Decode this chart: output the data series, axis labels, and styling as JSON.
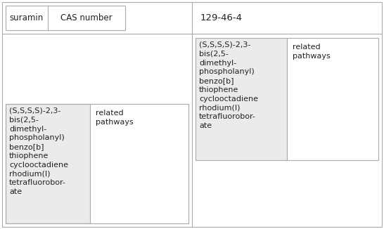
{
  "bg_color": "#ffffff",
  "border_color": "#aaaaaa",
  "cell_shaded": "#ebebeb",
  "text_color": "#222222",
  "font_size": 8.5,
  "compound_name": "(S,S,S,S)-2,3-\nbis(2,5-\ndimethyl-\nphospholanyl)\nbenzo[b]\nthiophene\ncyclooctadiene\nrhodium(I)\ntetrafluorobor-\nate",
  "related_pathways": "related\npathways",
  "suramin": "suramin",
  "cas_label": "CAS number",
  "cas_number": "129-46-4",
  "fig_width": 5.46,
  "fig_height": 3.26,
  "dpi": 100
}
